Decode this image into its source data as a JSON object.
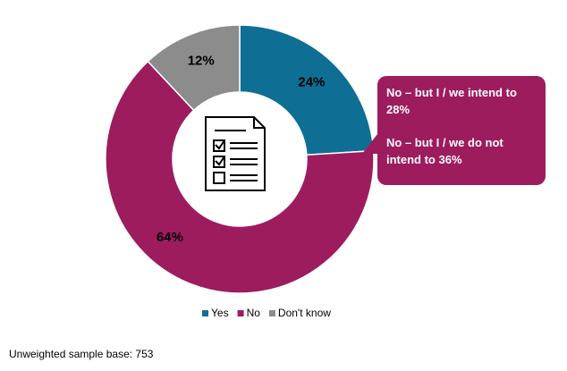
{
  "chart_data": {
    "type": "pie",
    "categories": [
      "Yes",
      "No",
      "Don't know"
    ],
    "values": [
      24,
      64,
      12
    ],
    "value_labels": [
      "24%",
      "64%",
      "12%"
    ],
    "colors": [
      "#0f6e94",
      "#9c1c5e",
      "#8c8c8c"
    ],
    "annotations": [
      "No – but I / we intend to 28%",
      "No – but I / we do not intend to 36%"
    ],
    "note": "Unweighted sample base: 753"
  }
}
